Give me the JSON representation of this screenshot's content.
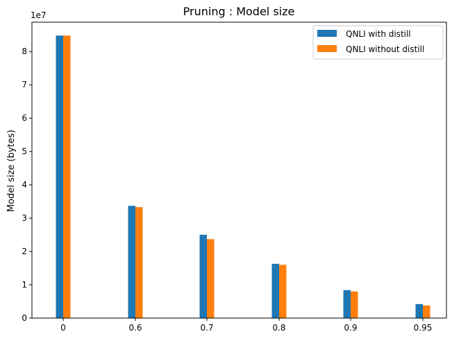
{
  "chart_data": {
    "type": "bar",
    "title": "Pruning : Model size",
    "xlabel": "",
    "ylabel": "Model size (bytes)",
    "offset_label": "1e7",
    "categories": [
      "0",
      "0.6",
      "0.7",
      "0.8",
      "0.9",
      "0.95"
    ],
    "series": [
      {
        "name": "QNLI with distill",
        "color": "#1f77b4",
        "values": [
          84800000,
          33700000,
          25000000,
          16300000,
          8400000,
          4200000
        ]
      },
      {
        "name": "QNLI without distill",
        "color": "#ff7f0e",
        "values": [
          84800000,
          33300000,
          23700000,
          16000000,
          8000000,
          3800000
        ]
      }
    ],
    "ylim": [
      0,
      88800000
    ],
    "yticks": [
      0,
      10000000,
      20000000,
      30000000,
      40000000,
      50000000,
      60000000,
      70000000,
      80000000
    ],
    "ytick_labels": [
      "0",
      "1",
      "2",
      "3",
      "4",
      "5",
      "6",
      "7",
      "8"
    ],
    "legend_position": "top-right",
    "grid": false
  }
}
